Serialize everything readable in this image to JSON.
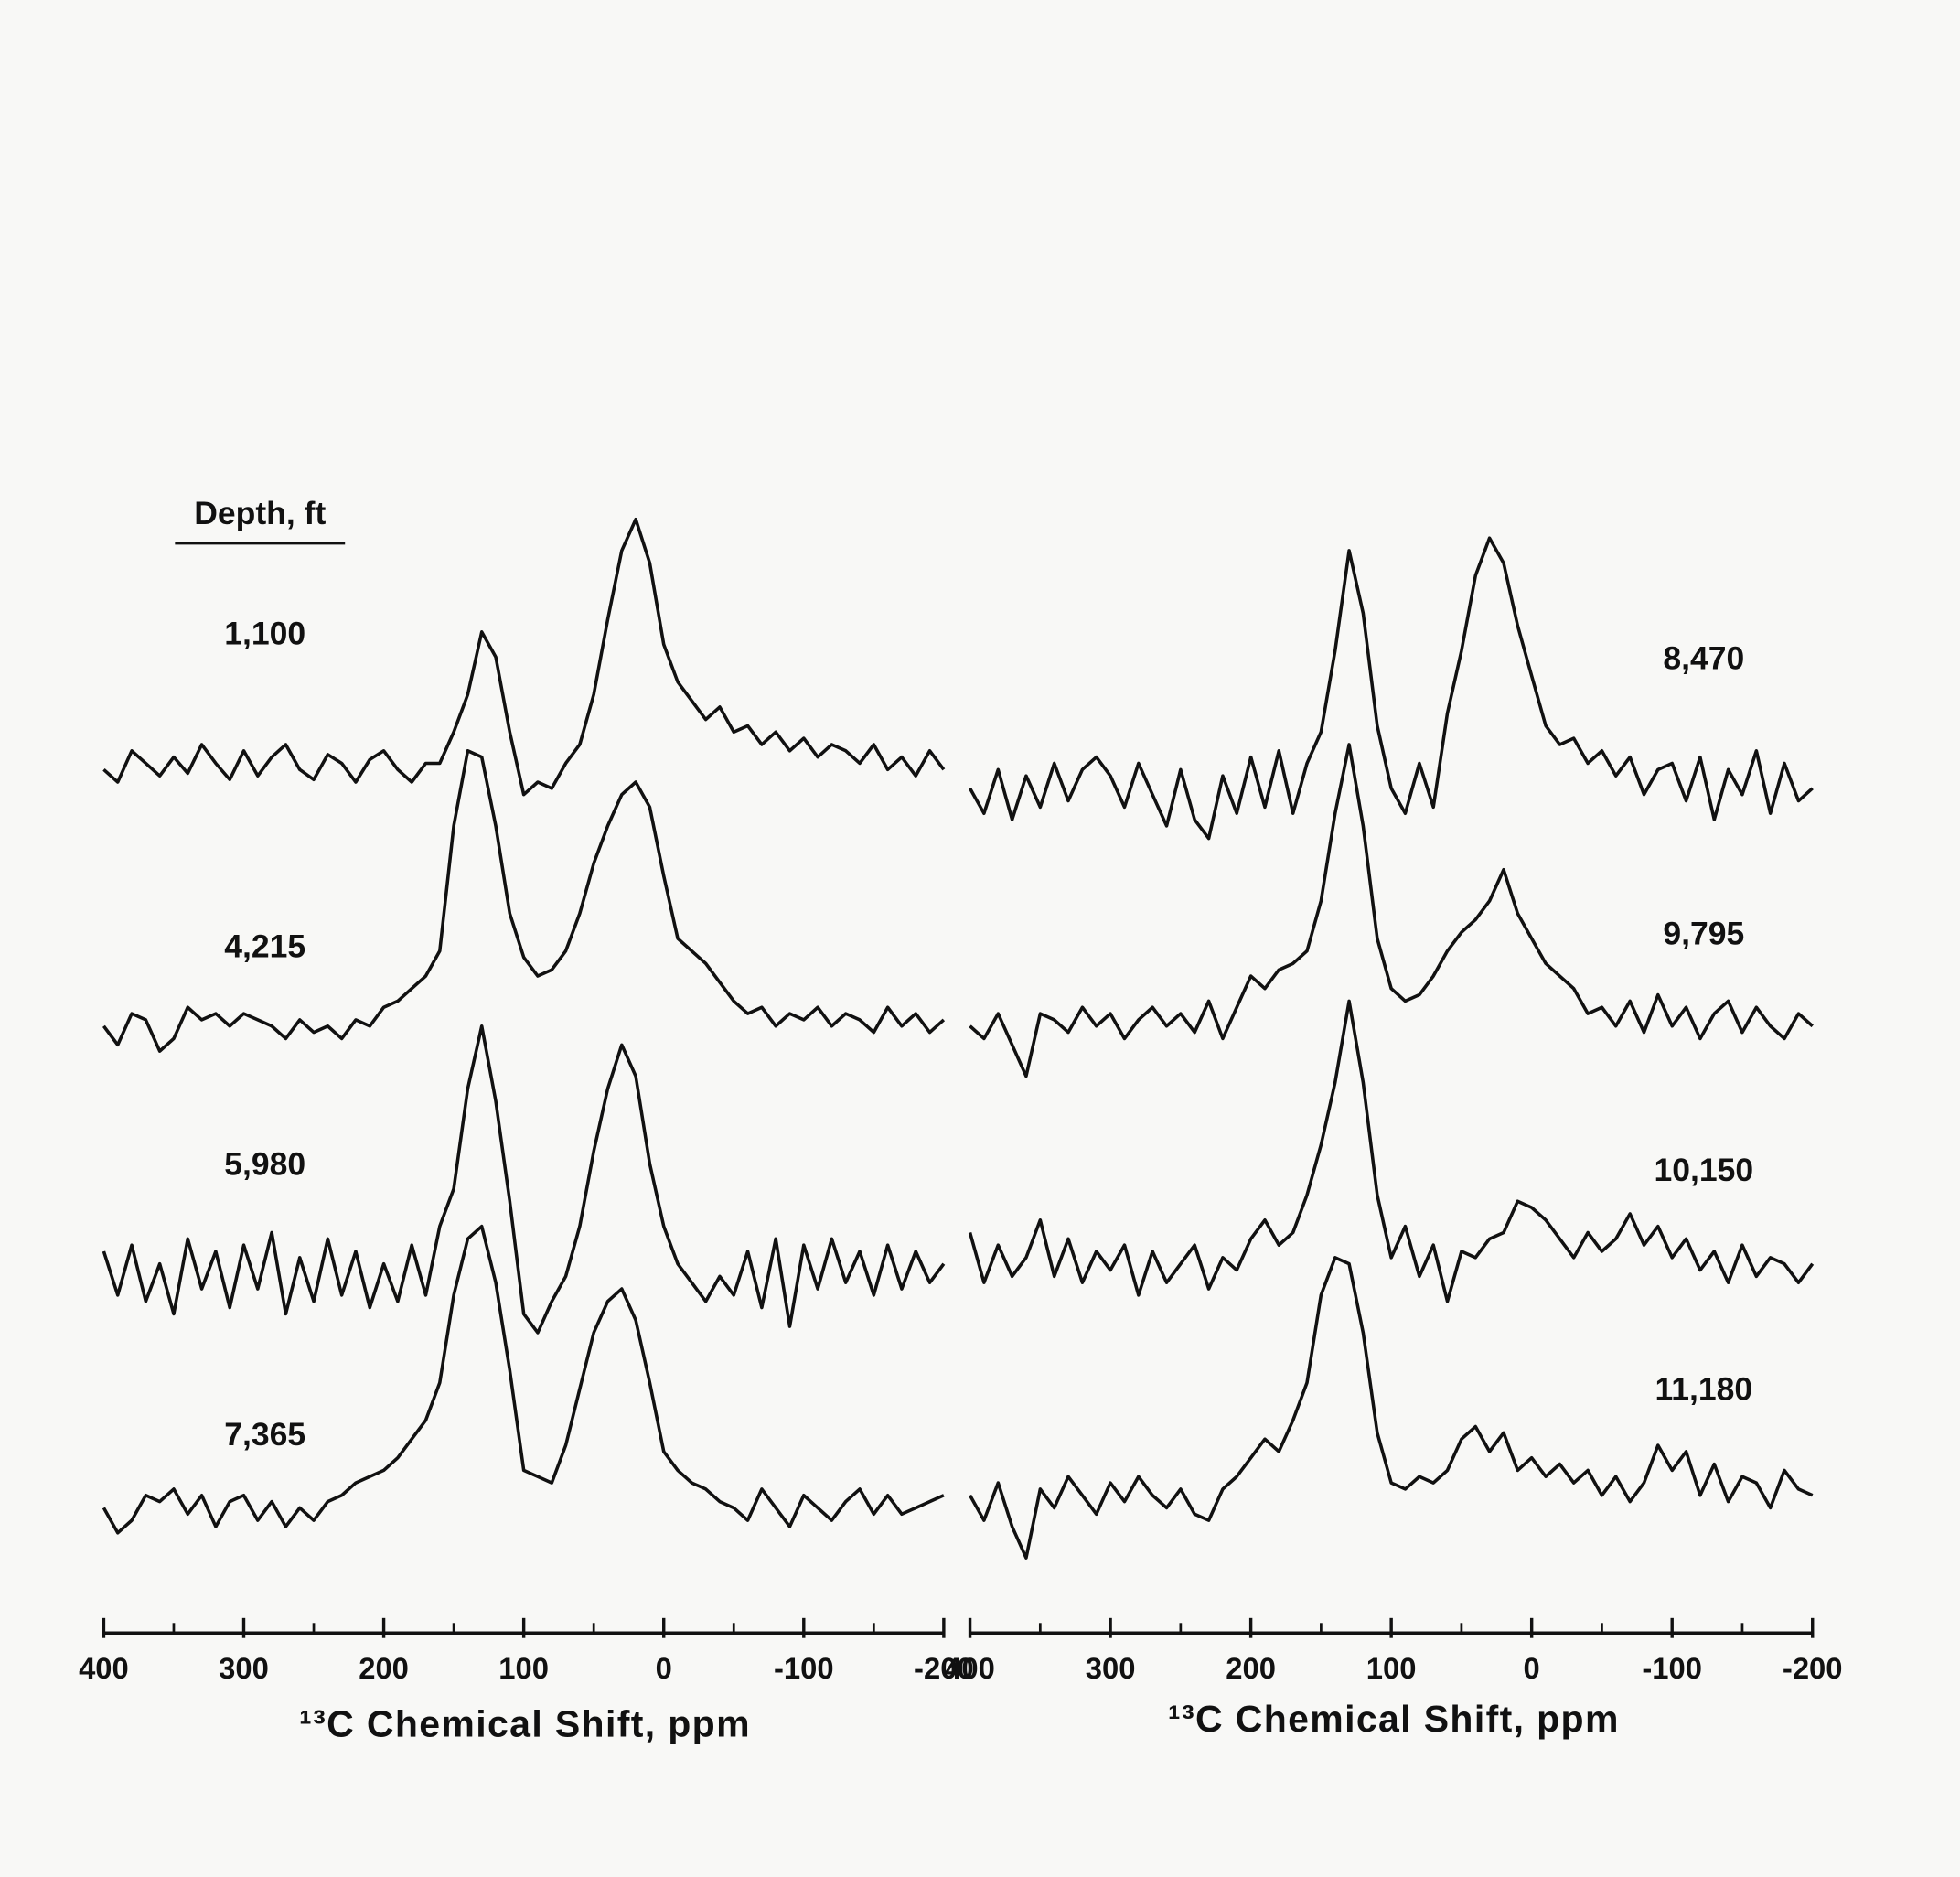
{
  "chart_data": [
    {
      "type": "line",
      "legend_title": "Depth, ft",
      "xlabel": "¹³C Chemical Shift, ppm",
      "xlim": [
        400,
        -200
      ],
      "xticks": [
        400,
        300,
        200,
        100,
        0,
        -100,
        -200
      ],
      "minor_xticks": [
        350,
        250,
        150,
        50,
        -50,
        -150
      ],
      "x": [
        400,
        390,
        380,
        370,
        360,
        350,
        340,
        330,
        320,
        310,
        300,
        290,
        280,
        270,
        260,
        250,
        240,
        230,
        220,
        210,
        200,
        190,
        180,
        170,
        160,
        150,
        140,
        130,
        120,
        110,
        100,
        90,
        80,
        70,
        60,
        50,
        40,
        30,
        20,
        10,
        0,
        -10,
        -20,
        -30,
        -40,
        -50,
        -60,
        -70,
        -80,
        -90,
        -100,
        -110,
        -120,
        -130,
        -140,
        -150,
        -160,
        -170,
        -180,
        -190,
        -200
      ],
      "series": [
        {
          "name": "1,100",
          "color": "#111111",
          "values": [
            0,
            -10,
            15,
            5,
            -5,
            10,
            -3,
            20,
            5,
            -8,
            15,
            -5,
            10,
            20,
            0,
            -8,
            12,
            5,
            -10,
            8,
            15,
            0,
            -10,
            5,
            5,
            30,
            60,
            110,
            90,
            30,
            -20,
            -10,
            -15,
            5,
            20,
            60,
            120,
            175,
            200,
            165,
            100,
            70,
            55,
            40,
            50,
            30,
            35,
            20,
            30,
            15,
            25,
            10,
            20,
            15,
            5,
            20,
            0,
            10,
            -5,
            15,
            0
          ]
        },
        {
          "name": "4,215",
          "color": "#111111",
          "values": [
            0,
            -15,
            10,
            5,
            -20,
            -10,
            15,
            5,
            10,
            0,
            10,
            5,
            0,
            -10,
            5,
            -5,
            0,
            -10,
            5,
            0,
            15,
            20,
            30,
            40,
            60,
            160,
            220,
            215,
            160,
            90,
            55,
            40,
            45,
            60,
            90,
            130,
            160,
            185,
            195,
            175,
            120,
            70,
            60,
            50,
            35,
            20,
            10,
            15,
            0,
            10,
            5,
            15,
            0,
            10,
            5,
            -5,
            15,
            0,
            10,
            -5,
            5
          ]
        },
        {
          "name": "5,980",
          "color": "#111111",
          "values": [
            20,
            -15,
            25,
            -20,
            10,
            -30,
            30,
            -10,
            20,
            -25,
            25,
            -10,
            35,
            -30,
            15,
            -20,
            30,
            -15,
            20,
            -25,
            10,
            -20,
            25,
            -15,
            40,
            70,
            150,
            200,
            140,
            60,
            -30,
            -45,
            -20,
            0,
            40,
            100,
            150,
            185,
            160,
            90,
            40,
            10,
            -5,
            -20,
            0,
            -15,
            20,
            -25,
            30,
            -40,
            25,
            -10,
            30,
            -5,
            20,
            -15,
            25,
            -10,
            20,
            -5,
            10
          ]
        },
        {
          "name": "7,365",
          "color": "#111111",
          "values": [
            0,
            -20,
            -10,
            10,
            5,
            15,
            -5,
            10,
            -15,
            5,
            10,
            -10,
            5,
            -15,
            0,
            -10,
            5,
            10,
            20,
            25,
            30,
            40,
            55,
            70,
            100,
            170,
            215,
            225,
            180,
            110,
            30,
            25,
            20,
            50,
            95,
            140,
            165,
            175,
            150,
            100,
            45,
            30,
            20,
            15,
            5,
            0,
            -10,
            15,
            0,
            -15,
            10,
            0,
            -10,
            5,
            15,
            -5,
            10,
            -5,
            0,
            5,
            10
          ]
        }
      ]
    },
    {
      "type": "line",
      "xlabel": "¹³C Chemical Shift, ppm",
      "xlim": [
        400,
        -200
      ],
      "xticks": [
        400,
        300,
        200,
        100,
        0,
        -100,
        -200
      ],
      "minor_xticks": [
        350,
        250,
        150,
        50,
        -50,
        -150
      ],
      "x": [
        400,
        390,
        380,
        370,
        360,
        350,
        340,
        330,
        320,
        310,
        300,
        290,
        280,
        270,
        260,
        250,
        240,
        230,
        220,
        210,
        200,
        190,
        180,
        170,
        160,
        150,
        140,
        130,
        120,
        110,
        100,
        90,
        80,
        70,
        60,
        50,
        40,
        30,
        20,
        10,
        0,
        -10,
        -20,
        -30,
        -40,
        -50,
        -60,
        -70,
        -80,
        -90,
        -100,
        -110,
        -120,
        -130,
        -140,
        -150,
        -160,
        -170,
        -180,
        -190,
        -200
      ],
      "series": [
        {
          "name": "8,470",
          "color": "#111111",
          "values": [
            0,
            -20,
            15,
            -25,
            10,
            -15,
            20,
            -10,
            15,
            25,
            10,
            -15,
            20,
            -5,
            -30,
            15,
            -25,
            -40,
            10,
            -20,
            25,
            -15,
            30,
            -20,
            20,
            45,
            110,
            190,
            140,
            50,
            0,
            -20,
            20,
            -15,
            60,
            110,
            170,
            200,
            180,
            130,
            90,
            50,
            35,
            40,
            20,
            30,
            10,
            25,
            -5,
            15,
            20,
            -10,
            25,
            -25,
            15,
            -5,
            30,
            -20,
            20,
            -10,
            0
          ]
        },
        {
          "name": "9,795",
          "color": "#111111",
          "values": [
            0,
            -10,
            10,
            -15,
            -40,
            10,
            5,
            -5,
            15,
            0,
            10,
            -10,
            5,
            15,
            0,
            10,
            -5,
            20,
            -10,
            15,
            40,
            30,
            45,
            50,
            60,
            100,
            170,
            225,
            160,
            70,
            30,
            20,
            25,
            40,
            60,
            75,
            85,
            100,
            125,
            90,
            70,
            50,
            40,
            30,
            10,
            15,
            0,
            20,
            -5,
            25,
            0,
            15,
            -10,
            10,
            20,
            -5,
            15,
            0,
            -10,
            10,
            0
          ]
        },
        {
          "name": "10,150",
          "color": "#111111",
          "values": [
            30,
            -10,
            20,
            -5,
            10,
            40,
            -5,
            25,
            -10,
            15,
            0,
            20,
            -20,
            15,
            -10,
            5,
            20,
            -15,
            10,
            0,
            25,
            40,
            20,
            30,
            60,
            100,
            150,
            215,
            150,
            60,
            10,
            35,
            -5,
            20,
            -25,
            15,
            10,
            25,
            30,
            55,
            50,
            40,
            25,
            10,
            30,
            15,
            25,
            45,
            20,
            35,
            10,
            25,
            0,
            15,
            -10,
            20,
            -5,
            10,
            5,
            -10,
            5
          ]
        },
        {
          "name": "11,180",
          "color": "#111111",
          "values": [
            0,
            -20,
            10,
            -25,
            -50,
            5,
            -10,
            15,
            0,
            -15,
            10,
            -5,
            15,
            0,
            -10,
            5,
            -15,
            -20,
            5,
            15,
            30,
            45,
            35,
            60,
            90,
            160,
            190,
            185,
            130,
            50,
            10,
            5,
            15,
            10,
            20,
            45,
            55,
            35,
            50,
            20,
            30,
            15,
            25,
            10,
            20,
            0,
            15,
            -5,
            10,
            40,
            20,
            35,
            0,
            25,
            -5,
            15,
            10,
            -10,
            20,
            5,
            0
          ]
        }
      ]
    }
  ]
}
